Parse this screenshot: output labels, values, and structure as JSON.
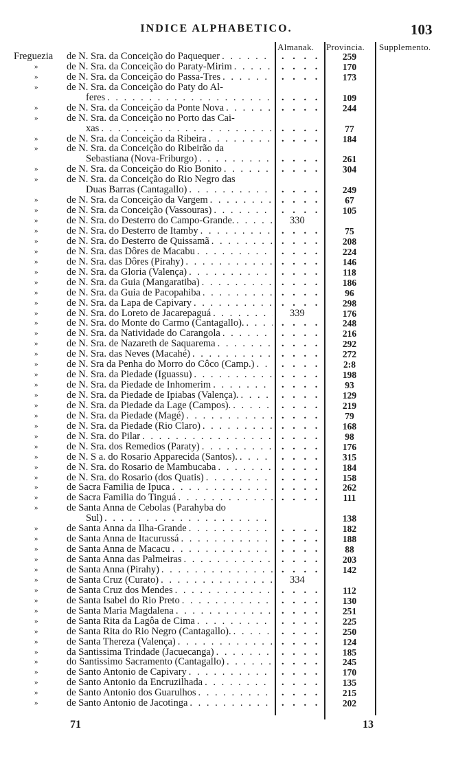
{
  "header": {
    "title": "INDICE ALPHABETICO.",
    "page_number": "103"
  },
  "columns": {
    "almanak": "Almanak.",
    "provincia": "Provincia.",
    "supplemento": "Supplemento."
  },
  "ditto_mark": "»",
  "entries": [
    {
      "prefix": "Freguezia",
      "lines": [
        "de N. Sra. da Conceição do Paquequer"
      ],
      "provincia": "259"
    },
    {
      "lines": [
        "de N. Sra. da Conceição do Paraty-Mirim"
      ],
      "provincia": "170"
    },
    {
      "lines": [
        "de N. Sra. da Conceição do Passa-Tres"
      ],
      "provincia": "173"
    },
    {
      "lines": [
        "de N. Sra. da Conceição do Paty do Al-",
        "feres"
      ],
      "provincia": "109"
    },
    {
      "lines": [
        "de N. Sra. da Conceição da Ponte Nova"
      ],
      "provincia": "244"
    },
    {
      "lines": [
        "de N. Sra. da Conceição no Porto das Cai-",
        "xas"
      ],
      "provincia": "77"
    },
    {
      "lines": [
        "de N. Sra. da Conceição da Ribeira"
      ],
      "provincia": "184"
    },
    {
      "lines": [
        "de N. Sra. da Conceição do Ribeirão da",
        "Sebastiana (Nova-Friburgo)"
      ],
      "provincia": "261"
    },
    {
      "lines": [
        "de N. Sra. da Conceição do Rio Bonito"
      ],
      "provincia": "304"
    },
    {
      "lines": [
        "de N. Sra. da Conceição do Rio Negro das",
        "Duas Barras (Cantagallo)"
      ],
      "provincia": "249"
    },
    {
      "lines": [
        "de N. Sra. da Conceição da Vargem"
      ],
      "provincia": "67"
    },
    {
      "lines": [
        "de N. Sra. da Conceição (Vassouras)"
      ],
      "provincia": "105"
    },
    {
      "lines": [
        "de N. Sra. do Desterro do Campo-Grande."
      ],
      "almanak": "330"
    },
    {
      "lines": [
        "de N. Sra. do Desterro de Itamby"
      ],
      "provincia": "75"
    },
    {
      "lines": [
        "de N. Sra. do Desterro de Quissamã"
      ],
      "provincia": "208"
    },
    {
      "lines": [
        "de N. Sra. das Dôres de Macabu"
      ],
      "provincia": "224"
    },
    {
      "lines": [
        "de N. Sra. das Dôres (Pirahy)"
      ],
      "provincia": "146"
    },
    {
      "lines": [
        "de N. Sra. da Gloria (Valença)"
      ],
      "provincia": "118"
    },
    {
      "lines": [
        "de N. Sra. da Guia (Mangaratiba)"
      ],
      "provincia": "186"
    },
    {
      "lines": [
        "de N. Sra. da Guia de Pacopahiba"
      ],
      "provincia": "96"
    },
    {
      "lines": [
        "de N. Sra. da Lapa de Capivary"
      ],
      "provincia": "298"
    },
    {
      "lines": [
        "de N. Sra. do Loreto de Jacarepaguá"
      ],
      "almanak": "339",
      "provincia": "176"
    },
    {
      "lines": [
        "de N. Sra. do Monte do Carmo (Cantagallo)."
      ],
      "provincia": "248"
    },
    {
      "lines": [
        "de N. Sra. da Natividade do Carangola"
      ],
      "provincia": "216"
    },
    {
      "lines": [
        "de N. Sra. de Nazareth de Saquarema"
      ],
      "provincia": "292"
    },
    {
      "lines": [
        "de N. Sra. das Neves (Macahé)"
      ],
      "provincia": "272"
    },
    {
      "lines": [
        "de N. Sra da Penha do Morro do Côco (Camp.)"
      ],
      "provincia": "2:8"
    },
    {
      "lines": [
        "de N. Sra. da Piedade (Iguassu)"
      ],
      "provincia": "198"
    },
    {
      "lines": [
        "de N. Sra. da Piedade de Inhomerim"
      ],
      "provincia": "93"
    },
    {
      "lines": [
        "de N. Sra. da Piedade de Ipiabas (Valença)."
      ],
      "provincia": "129"
    },
    {
      "lines": [
        "de N. Sra. da Piedade da Lage (Campos)."
      ],
      "provincia": "219"
    },
    {
      "lines": [
        "de N. Sra. da Piedade (Magé)"
      ],
      "provincia": "79"
    },
    {
      "lines": [
        "de N. Sra. da Piedade (Rio Claro)"
      ],
      "provincia": "168"
    },
    {
      "lines": [
        "de N. Sra. do Pilar"
      ],
      "provincia": "98"
    },
    {
      "lines": [
        "de N. Sra. dos Remedios (Paraty)"
      ],
      "provincia": "176"
    },
    {
      "lines": [
        "de N. S a. do Rosario Apparecida (Santos)."
      ],
      "provincia": "315"
    },
    {
      "lines": [
        "de N. Sra. do Rosario de Mambucaba"
      ],
      "provincia": "184"
    },
    {
      "lines": [
        "de N. Sra. do Rosario (dos Quatis)"
      ],
      "provincia": "158"
    },
    {
      "lines": [
        "de Sacra Familia de Ipuca"
      ],
      "provincia": "262"
    },
    {
      "lines": [
        "de Sacra Familia do Tinguá"
      ],
      "provincia": "111"
    },
    {
      "lines": [
        "de Santa Anna de Cebolas (Parahyba do",
        "Sul)"
      ],
      "provincia": "138",
      "no_dots": true
    },
    {
      "lines": [
        "de Santa Anna da Ilha-Grande"
      ],
      "provincia": "182"
    },
    {
      "lines": [
        "de Santa Anna de Itacurussá"
      ],
      "provincia": "188"
    },
    {
      "lines": [
        "de Santa Anna de Macacu"
      ],
      "provincia": "88"
    },
    {
      "lines": [
        "de Santa Anna das Palmeiras"
      ],
      "provincia": "203"
    },
    {
      "lines": [
        "de Santa Anna (Pirahy)"
      ],
      "provincia": "142"
    },
    {
      "lines": [
        "de Santa Cruz (Curato)"
      ],
      "almanak": "334"
    },
    {
      "lines": [
        "de Santa Cruz dos Mendes"
      ],
      "provincia": "112"
    },
    {
      "lines": [
        "de Santa Isabel do Rio Preto"
      ],
      "provincia": "130"
    },
    {
      "lines": [
        "de Santa Maria Magdalena"
      ],
      "provincia": "251"
    },
    {
      "lines": [
        "de Santa Rita da Lagôa de Cima"
      ],
      "provincia": "225"
    },
    {
      "lines": [
        "de Santa Rita do Rio Negro (Cantagallo)."
      ],
      "provincia": "250"
    },
    {
      "lines": [
        "de Santa Thereza (Valença)"
      ],
      "provincia": "124"
    },
    {
      "lines": [
        "da Santissima Trindade (Jacuecanga)"
      ],
      "provincia": "185"
    },
    {
      "lines": [
        "do Santissimo Sacramento (Cantagallo)"
      ],
      "provincia": "245"
    },
    {
      "lines": [
        "de Santo Antonio de Capivary"
      ],
      "provincia": "170"
    },
    {
      "lines": [
        "de Santo Antonio da Encruzilhada"
      ],
      "provincia": "135"
    },
    {
      "lines": [
        "de Santo Antonio dos Guarulhos"
      ],
      "provincia": "215"
    },
    {
      "lines": [
        "de Santo Antonio de Jacotinga"
      ],
      "provincia": "202"
    }
  ],
  "footer": {
    "left": "71",
    "right": "13"
  }
}
